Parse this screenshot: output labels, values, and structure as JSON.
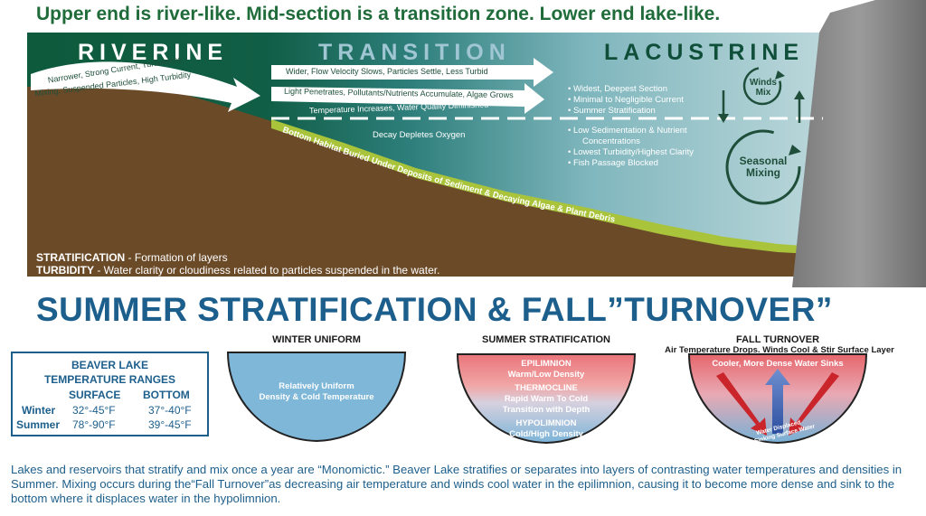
{
  "headline": "Upper end is river-like. Mid-section is a transition zone. Lower end lake-like.",
  "zones": {
    "riverine": "RIVERINE",
    "transition": "TRANSITION",
    "lacustrine": "LACUSTRINE"
  },
  "riverine_arrow": {
    "line1": "Narrower, Strong Current, Turbulence",
    "line2": "Mixing, Suspended Particles, High Turbidity"
  },
  "transition_arrows": [
    "Wider, Flow Velocity Slows, Particles Settle, Less Turbid",
    "Light Penetrates, Pollutants/Nutrients Accumulate, Algae Grows",
    "Temperature Increases, Water Quality Diminished"
  ],
  "decay_text": "Decay Depletes Oxygen",
  "lacustrine_upper": [
    "• Widest, Deepest Section",
    "• Minimal to Negligible Current",
    "• Summer Stratification"
  ],
  "lacustrine_lower": [
    "• Low Sedimentation & Nutrient",
    "Concentrations",
    "• Lowest Turbidity/Highest Clarity",
    "• Fish Passage Blocked"
  ],
  "winds_mix": {
    "line1": "Winds",
    "line2": "Mix"
  },
  "seasonal_mixing": {
    "line1": "Seasonal",
    "line2": "Mixing"
  },
  "bottom_habitat": "Bottom Habitat Buried Under Deposits of Sediment & Decaying Algae & Plant Debris",
  "definitions": {
    "stratification_term": "STRATIFICATION",
    "stratification_def": " - Formation of layers",
    "turbidity_term": "TURBIDITY",
    "turbidity_def": " - Water clarity or cloudiness related to particles suspended in the water."
  },
  "section_title": "SUMMER STRATIFICATION & FALL”TURNOVER”",
  "lakes": {
    "winter": {
      "title": "WINTER UNIFORM",
      "line1": "Relatively Uniform",
      "line2": "Density & Cold Temperature"
    },
    "summer": {
      "title": "SUMMER STRATIFICATION",
      "epi_title": "EPILIMNION",
      "epi_desc": "Warm/Low Density",
      "thermo_title": "THERMOCLINE",
      "thermo_line1": "Rapid Warm To Cold",
      "thermo_line2": "Transition with Depth",
      "hypo_title": "HYPOLIMNION",
      "hypo_desc": "Cold/High Density"
    },
    "fall": {
      "title": "FALL TURNOVER",
      "subtitle": "Air Temperature Drops. Winds Cool & Stir Surface Layer",
      "sink_text": "Cooler, More Dense Water Sinks",
      "displaced_line1": "Water Displaced",
      "displaced_line2": "By Sinking Surface Water"
    }
  },
  "ranges": {
    "title1": "BEAVER LAKE",
    "title2": "TEMPERATURE RANGES",
    "col_surface": "SURFACE",
    "col_bottom": "BOTTOM",
    "rows": [
      {
        "season": "Winter",
        "surface": "32°-45°F",
        "bottom": "37°-40°F"
      },
      {
        "season": "Summer",
        "surface": "78°-90°F",
        "bottom": "39°-45°F"
      }
    ]
  },
  "footer": "Lakes and reservoirs that stratify and mix once a year are “Monomictic.” Beaver Lake stratifies or separates into layers of contrasting water temperatures and densities in Summer. Mixing occurs during the“Fall Turnover”as decreasing air temperature and winds cool water in the epilimnion, causing it to become more dense and sink to the bottom where it displaces water in the hypolimnion."
}
